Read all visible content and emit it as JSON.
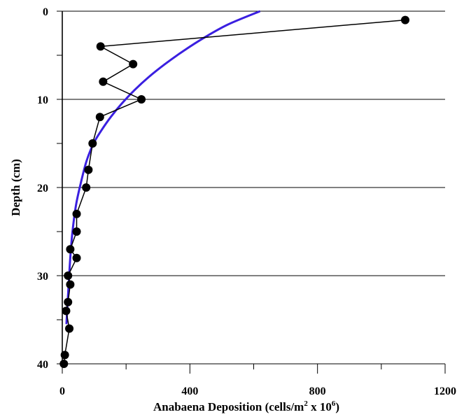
{
  "chart_data": {
    "type": "scatter",
    "xlabel": {
      "main": "Anabaena Deposition (cells/m",
      "sup1": "2",
      "mid": " x 10",
      "sup2": "6",
      "end": ")"
    },
    "ylabel": "Depth (cm)",
    "xlim": [
      0,
      1200
    ],
    "ylim": [
      0,
      40
    ],
    "y_inverted": true,
    "x_ticks": [
      "0",
      "400",
      "800",
      "1200"
    ],
    "y_ticks": [
      "0",
      "10",
      "20",
      "30",
      "40"
    ],
    "x_tick_values": [
      0,
      400,
      800,
      1200
    ],
    "y_tick_values": [
      0,
      10,
      20,
      30,
      40
    ],
    "grid": "horizontal",
    "series": [
      {
        "style": "markers-with-line",
        "color": "#000000",
        "points": [
          {
            "x": 1075,
            "y": 1
          },
          {
            "x": 120,
            "y": 4
          },
          {
            "x": 222,
            "y": 6
          },
          {
            "x": 128,
            "y": 8
          },
          {
            "x": 248,
            "y": 10
          },
          {
            "x": 118,
            "y": 12
          },
          {
            "x": 95,
            "y": 15
          },
          {
            "x": 82,
            "y": 18
          },
          {
            "x": 75,
            "y": 20
          },
          {
            "x": 45,
            "y": 23
          },
          {
            "x": 45,
            "y": 25
          },
          {
            "x": 25,
            "y": 27
          },
          {
            "x": 45,
            "y": 28
          },
          {
            "x": 18,
            "y": 30
          },
          {
            "x": 25,
            "y": 31
          },
          {
            "x": 18,
            "y": 33
          },
          {
            "x": 12,
            "y": 34
          },
          {
            "x": 22,
            "y": 36
          },
          {
            "x": 8,
            "y": 39
          },
          {
            "x": 5,
            "y": 40
          }
        ]
      },
      {
        "style": "fitted-curve",
        "color": "#3a1fe0",
        "points": [
          {
            "x": 620,
            "y": 0
          },
          {
            "x": 520,
            "y": 1.5
          },
          {
            "x": 445,
            "y": 3
          },
          {
            "x": 380,
            "y": 4.5
          },
          {
            "x": 322,
            "y": 6
          },
          {
            "x": 270,
            "y": 7.5
          },
          {
            "x": 225,
            "y": 9
          },
          {
            "x": 186,
            "y": 10.5
          },
          {
            "x": 152,
            "y": 12
          },
          {
            "x": 123,
            "y": 13.5
          },
          {
            "x": 98,
            "y": 15
          },
          {
            "x": 76,
            "y": 17
          },
          {
            "x": 58,
            "y": 19.5
          },
          {
            "x": 43,
            "y": 22
          },
          {
            "x": 32,
            "y": 25
          },
          {
            "x": 25,
            "y": 28
          },
          {
            "x": 20,
            "y": 31
          },
          {
            "x": 16,
            "y": 33.5
          },
          {
            "x": 13,
            "y": 35.5
          }
        ]
      }
    ]
  }
}
